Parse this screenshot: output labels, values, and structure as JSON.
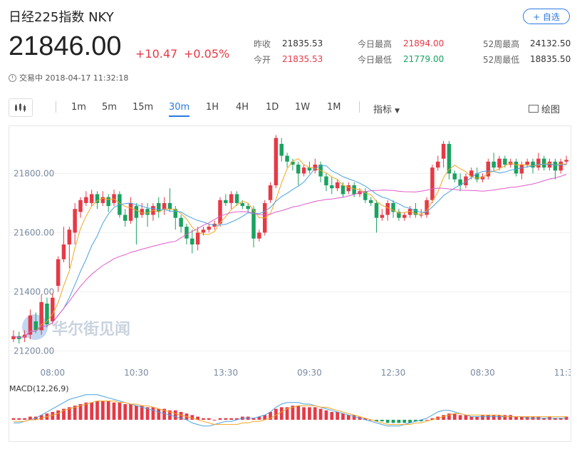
{
  "header": {
    "title": "日经225指数  NKY",
    "add_label": "+ 自选",
    "price": "21846.00",
    "change_abs": "+10.47",
    "change_pct": "+0.05%",
    "status": "交易中 2018-04-17 11:32:18"
  },
  "stats": {
    "col1": [
      {
        "label": "昨收",
        "value": "21835.53",
        "color": "normal"
      },
      {
        "label": "今开",
        "value": "21835.53",
        "color": "red"
      }
    ],
    "col2": [
      {
        "label": "今日最高",
        "value": "21894.00",
        "color": "red"
      },
      {
        "label": "今日最低",
        "value": "21779.00",
        "color": "green"
      }
    ],
    "col3": [
      {
        "label": "52周最高",
        "value": "24132.50",
        "color": "normal"
      },
      {
        "label": "52周最低",
        "value": "18835.50",
        "color": "normal"
      }
    ]
  },
  "toolbar": {
    "intervals": [
      "1m",
      "5m",
      "15m",
      "30m",
      "1H",
      "4H",
      "1D",
      "1W",
      "1M"
    ],
    "active_interval": "30m",
    "indicator_label": "指标",
    "draw_label": "绘图"
  },
  "watermark": "华尔街见闻",
  "chart_data": {
    "type": "candlestick",
    "y_ticks": [
      "21800.00",
      "21600.00",
      "21400.00",
      "21200.00"
    ],
    "y_tick_values": [
      21800,
      21600,
      21400,
      21200
    ],
    "ylim": [
      21160,
      21960
    ],
    "x_ticks": [
      "08:00",
      "10:30",
      "13:30",
      "09:30",
      "12:30",
      "08:30",
      "11:30"
    ],
    "x_tick_index": [
      7,
      22,
      38,
      53,
      68,
      84,
      99
    ],
    "up_color": "#e63946",
    "down_color": "#1aa260",
    "ma_colors": [
      "#f5a623",
      "#4aa3df",
      "#e05cc8"
    ],
    "candles": [
      [
        21240,
        21250,
        21270,
        21230
      ],
      [
        21250,
        21240,
        21265,
        21225
      ],
      [
        21245,
        21255,
        21270,
        21230
      ],
      [
        21255,
        21320,
        21340,
        21240
      ],
      [
        21300,
        21270,
        21330,
        21260
      ],
      [
        21270,
        21365,
        21390,
        21255
      ],
      [
        21360,
        21290,
        21380,
        21280
      ],
      [
        21300,
        21380,
        21395,
        21290
      ],
      [
        21420,
        21510,
        21520,
        21400
      ],
      [
        21510,
        21560,
        21620,
        21500
      ],
      [
        21560,
        21610,
        21620,
        21480
      ],
      [
        21600,
        21680,
        21700,
        21560
      ],
      [
        21670,
        21710,
        21720,
        21650
      ],
      [
        21700,
        21720,
        21740,
        21690
      ],
      [
        21700,
        21730,
        21745,
        21690
      ],
      [
        21730,
        21700,
        21740,
        21680
      ],
      [
        21700,
        21720,
        21740,
        21690
      ],
      [
        21720,
        21690,
        21730,
        21670
      ],
      [
        21700,
        21730,
        21745,
        21690
      ],
      [
        21730,
        21660,
        21740,
        21650
      ],
      [
        21660,
        21640,
        21680,
        21620
      ],
      [
        21640,
        21700,
        21720,
        21630
      ],
      [
        21690,
        21650,
        21700,
        21560
      ],
      [
        21660,
        21680,
        21700,
        21650
      ],
      [
        21680,
        21660,
        21700,
        21620
      ],
      [
        21660,
        21690,
        21700,
        21640
      ],
      [
        21700,
        21670,
        21720,
        21650
      ],
      [
        21680,
        21700,
        21720,
        21660
      ],
      [
        21700,
        21680,
        21750,
        21670
      ],
      [
        21680,
        21650,
        21690,
        21610
      ],
      [
        21650,
        21620,
        21660,
        21600
      ],
      [
        21620,
        21580,
        21630,
        21560
      ],
      [
        21580,
        21560,
        21610,
        21530
      ],
      [
        21560,
        21600,
        21620,
        21540
      ],
      [
        21600,
        21610,
        21620,
        21590
      ],
      [
        21610,
        21620,
        21630,
        21600
      ],
      [
        21620,
        21630,
        21640,
        21610
      ],
      [
        21630,
        21710,
        21720,
        21620
      ],
      [
        21710,
        21700,
        21730,
        21690
      ],
      [
        21700,
        21730,
        21740,
        21680
      ],
      [
        21730,
        21700,
        21740,
        21690
      ],
      [
        21700,
        21690,
        21710,
        21680
      ],
      [
        21690,
        21680,
        21700,
        21670
      ],
      [
        21680,
        21580,
        21690,
        21550
      ],
      [
        21580,
        21600,
        21610,
        21570
      ],
      [
        21600,
        21700,
        21710,
        21590
      ],
      [
        21710,
        21760,
        21770,
        21700
      ],
      [
        21760,
        21920,
        21930,
        21750
      ],
      [
        21900,
        21860,
        21920,
        21840
      ],
      [
        21860,
        21840,
        21870,
        21820
      ],
      [
        21840,
        21830,
        21850,
        21810
      ],
      [
        21830,
        21800,
        21840,
        21760
      ],
      [
        21800,
        21820,
        21830,
        21790
      ],
      [
        21820,
        21810,
        21840,
        21800
      ],
      [
        21810,
        21830,
        21850,
        21800
      ],
      [
        21830,
        21790,
        21840,
        21770
      ],
      [
        21790,
        21760,
        21800,
        21740
      ],
      [
        21760,
        21750,
        21790,
        21730
      ],
      [
        21750,
        21770,
        21780,
        21740
      ],
      [
        21760,
        21730,
        21770,
        21720
      ],
      [
        21740,
        21760,
        21770,
        21730
      ],
      [
        21760,
        21730,
        21770,
        21720
      ],
      [
        21730,
        21740,
        21750,
        21720
      ],
      [
        21740,
        21710,
        21750,
        21700
      ],
      [
        21710,
        21700,
        21720,
        21690
      ],
      [
        21700,
        21650,
        21710,
        21600
      ],
      [
        21650,
        21660,
        21680,
        21640
      ],
      [
        21660,
        21700,
        21710,
        21640
      ],
      [
        21700,
        21670,
        21710,
        21650
      ],
      [
        21670,
        21650,
        21680,
        21640
      ],
      [
        21650,
        21660,
        21670,
        21640
      ],
      [
        21660,
        21680,
        21690,
        21650
      ],
      [
        21680,
        21660,
        21700,
        21650
      ],
      [
        21660,
        21660,
        21680,
        21650
      ],
      [
        21660,
        21710,
        21720,
        21650
      ],
      [
        21710,
        21820,
        21830,
        21700
      ],
      [
        21820,
        21840,
        21860,
        21810
      ],
      [
        21850,
        21900,
        21910,
        21820
      ],
      [
        21900,
        21800,
        21910,
        21780
      ],
      [
        21800,
        21780,
        21810,
        21770
      ],
      [
        21780,
        21760,
        21800,
        21740
      ],
      [
        21760,
        21790,
        21800,
        21750
      ],
      [
        21790,
        21810,
        21820,
        21780
      ],
      [
        21800,
        21780,
        21820,
        21770
      ],
      [
        21780,
        21790,
        21800,
        21770
      ],
      [
        21790,
        21840,
        21850,
        21780
      ],
      [
        21840,
        21820,
        21870,
        21810
      ],
      [
        21820,
        21850,
        21860,
        21810
      ],
      [
        21850,
        21830,
        21860,
        21820
      ],
      [
        21830,
        21840,
        21850,
        21820
      ],
      [
        21840,
        21800,
        21850,
        21790
      ],
      [
        21800,
        21830,
        21840,
        21780
      ],
      [
        21830,
        21840,
        21850,
        21820
      ],
      [
        21840,
        21820,
        21850,
        21800
      ],
      [
        21820,
        21850,
        21870,
        21810
      ],
      [
        21850,
        21820,
        21860,
        21810
      ],
      [
        21820,
        21840,
        21850,
        21810
      ],
      [
        21840,
        21810,
        21850,
        21780
      ],
      [
        21810,
        21840,
        21850,
        21800
      ],
      [
        21840,
        21846,
        21860,
        21830
      ]
    ],
    "macd_label": "MACD(12,26,9)",
    "macd_hist": [
      1,
      1,
      1,
      2,
      2,
      3,
      4,
      5,
      6,
      7,
      8,
      9,
      10,
      11,
      11,
      12,
      12,
      12,
      11,
      11,
      10,
      10,
      9,
      9,
      8,
      8,
      7,
      7,
      6,
      6,
      5,
      4,
      3,
      2,
      1,
      1,
      0,
      1,
      1,
      1,
      1,
      2,
      2,
      1,
      2,
      3,
      5,
      7,
      8,
      8,
      9,
      9,
      8,
      8,
      8,
      7,
      6,
      5,
      5,
      4,
      3,
      3,
      2,
      1,
      0,
      -1,
      -1,
      -2,
      -2,
      -2,
      -2,
      -2,
      -1,
      -1,
      0,
      1,
      2,
      3,
      4,
      4,
      3,
      3,
      2,
      2,
      3,
      3,
      3,
      3,
      3,
      3,
      2,
      2,
      2,
      2,
      2,
      1,
      2,
      1,
      1,
      2
    ],
    "macd_dif": [
      -2,
      -2,
      -1,
      0,
      1,
      3,
      5,
      7,
      9,
      11,
      13,
      14,
      15,
      16,
      16,
      16,
      15,
      14,
      13,
      12,
      11,
      10,
      9,
      8,
      7,
      6,
      5,
      4,
      3,
      2,
      1,
      0,
      -2,
      -3,
      -4,
      -4,
      -3,
      -2,
      -1,
      -1,
      0,
      1,
      1,
      1,
      2,
      3,
      5,
      8,
      10,
      11,
      11,
      11,
      10,
      10,
      9,
      8,
      7,
      6,
      5,
      4,
      3,
      2,
      1,
      0,
      -1,
      -2,
      -3,
      -4,
      -4,
      -4,
      -3,
      -2,
      -1,
      0,
      1,
      3,
      5,
      6,
      6,
      5,
      4,
      3,
      2,
      2,
      2,
      2,
      2,
      2,
      2,
      2,
      2,
      2,
      1,
      1,
      1,
      1,
      1,
      1,
      1,
      1
    ],
    "macd_dea": [
      -1,
      -1,
      -1,
      0,
      0,
      1,
      2,
      3,
      4,
      6,
      7,
      8,
      9,
      10,
      11,
      12,
      12,
      12,
      12,
      11,
      11,
      10,
      10,
      9,
      9,
      8,
      7,
      6,
      5,
      4,
      3,
      2,
      1,
      0,
      -1,
      -2,
      -3,
      -3,
      -3,
      -3,
      -3,
      -2,
      -2,
      -1,
      -1,
      0,
      1,
      3,
      5,
      7,
      8,
      9,
      9,
      9,
      9,
      8,
      8,
      7,
      6,
      5,
      4,
      3,
      2,
      1,
      0,
      -1,
      -2,
      -3,
      -3,
      -3,
      -3,
      -3,
      -2,
      -2,
      -1,
      0,
      1,
      2,
      3,
      4,
      4,
      3,
      3,
      3,
      3,
      3,
      3,
      3,
      2,
      2,
      2,
      2,
      2,
      2,
      2,
      2,
      2,
      2,
      2,
      2
    ]
  }
}
